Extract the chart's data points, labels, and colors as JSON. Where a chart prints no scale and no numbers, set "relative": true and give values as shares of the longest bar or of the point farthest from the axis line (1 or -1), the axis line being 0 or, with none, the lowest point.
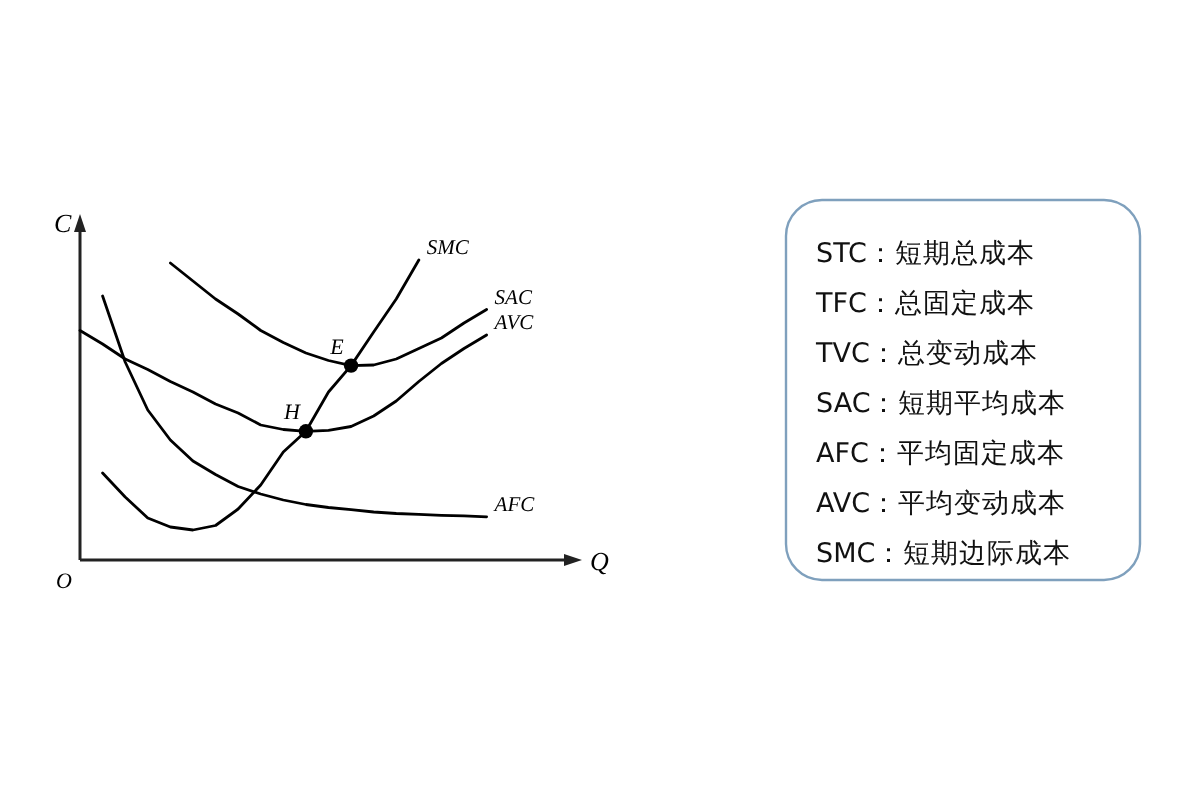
{
  "chart_data": [
    {
      "type": "line",
      "relative": true,
      "xlabel": "Q",
      "ylabel": "C",
      "annotations": [
        "O",
        {
          "text": "E",
          "y": 0.648
        },
        {
          "text": "H",
          "y": 0.429
        }
      ],
      "categories": [
        null,
        null,
        null,
        null,
        null,
        null,
        null,
        null,
        null,
        null,
        null,
        null,
        null,
        null,
        null,
        null,
        null,
        null,
        null,
        null
      ],
      "series": [
        {
          "name": "SMC",
          "color": "#000000",
          "values": [
            null,
            0.29,
            0.21,
            0.14,
            0.11,
            0.1,
            0.115,
            0.17,
            0.25,
            0.36,
            0.429,
            0.56,
            0.648,
            0.76,
            0.87,
            1,
            null,
            null,
            null,
            null
          ]
        },
        {
          "name": "SAC",
          "color": "#000000",
          "values": [
            null,
            null,
            null,
            null,
            0.99,
            0.93,
            0.87,
            0.82,
            0.765,
            0.725,
            0.69,
            0.665,
            0.648,
            0.65,
            0.67,
            0.705,
            0.74,
            0.79,
            0.835,
            null
          ]
        },
        {
          "name": "AVC",
          "color": "#000000",
          "values": [
            0.765,
            0.72,
            0.67,
            0.635,
            0.595,
            0.56,
            0.52,
            0.49,
            0.45,
            0.435,
            0.429,
            0.432,
            0.445,
            0.48,
            0.53,
            0.595,
            0.655,
            0.705,
            0.75,
            null
          ]
        },
        {
          "name": "AFC",
          "color": "#000000",
          "values": [
            null,
            0.88,
            0.66,
            0.5,
            0.4,
            0.33,
            0.285,
            0.245,
            0.22,
            0.2,
            0.185,
            0.175,
            0.168,
            0.16,
            0.155,
            0.152,
            0.149,
            0.147,
            0.144,
            null
          ]
        }
      ]
    },
    {
      "type": "other",
      "annotations": [
        "STC：短期总成本",
        "TFC：总固定成本",
        "TVC：总变动成本",
        "SAC：短期平均成本",
        "AFC：平均固定成本",
        "AVC：平均变动成本",
        "SMC：短期边际成本"
      ]
    }
  ]
}
